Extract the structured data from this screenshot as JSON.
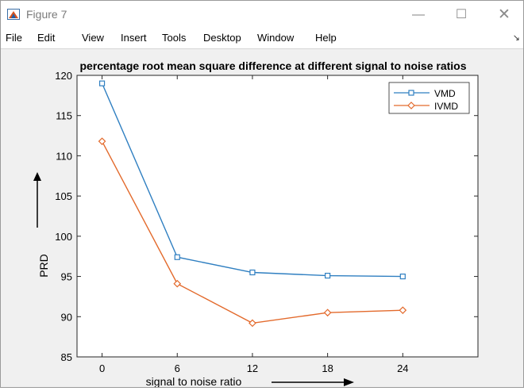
{
  "window": {
    "title": "Figure 7",
    "minimize_glyph": "—",
    "maximize_glyph": "☐",
    "close_glyph": "✕",
    "app_icon": "matlab-figure-icon"
  },
  "menu": {
    "items": [
      "File",
      "Edit",
      "View",
      "Insert",
      "Tools",
      "Desktop",
      "Window",
      "Help"
    ],
    "overflow_glyph": "↘"
  },
  "colors": {
    "series_1": "#2f7fc1",
    "series_2": "#e36a2c",
    "axes_background": "#ffffff",
    "figure_background": "#f0f0f0"
  },
  "chart_data": {
    "type": "line",
    "title": "percentage root mean square difference  at different signal to noise ratios",
    "xlabel": "signal to noise ratio",
    "ylabel": "PRD",
    "x": [
      0,
      6,
      12,
      18,
      24
    ],
    "x_ticks": [
      "0",
      "6",
      "12",
      "18",
      "24"
    ],
    "y_ticks": [
      "85",
      "90",
      "95",
      "100",
      "105",
      "110",
      "115",
      "120"
    ],
    "xlim": [
      -2,
      30
    ],
    "ylim": [
      85,
      120
    ],
    "grid": false,
    "legend_position": "top-right",
    "series": [
      {
        "name": "VMD",
        "marker": "square",
        "values": [
          119.0,
          97.4,
          95.5,
          95.1,
          95.0
        ]
      },
      {
        "name": "IVMD",
        "marker": "diamond",
        "values": [
          111.8,
          94.1,
          89.2,
          90.5,
          90.8
        ]
      }
    ]
  }
}
